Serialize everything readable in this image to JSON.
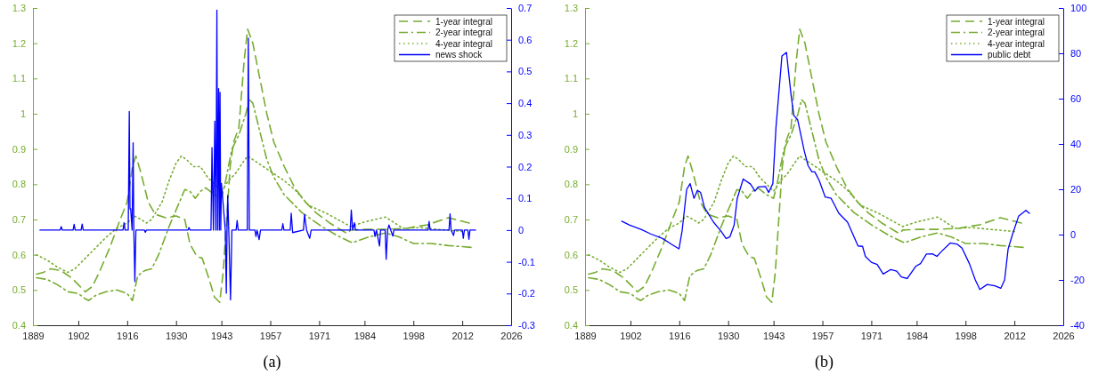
{
  "chart_data": [
    {
      "type": "line",
      "xlabel": "(a)",
      "xlim": [
        1889,
        2026
      ],
      "xticks": [
        1889,
        1902,
        1916,
        1930,
        1943,
        1957,
        1971,
        1984,
        1998,
        2012,
        2026
      ],
      "ylim": [
        0.4,
        1.3
      ],
      "yticks": [
        0.4,
        0.5,
        0.6,
        0.7,
        0.8,
        0.9,
        1,
        1.1,
        1.2,
        1.3
      ],
      "y2lim": [
        -0.3,
        0.7
      ],
      "y2ticks": [
        -0.3,
        -0.2,
        -0.1,
        0,
        0.1,
        0.2,
        0.3,
        0.4,
        0.5,
        0.6,
        0.7
      ],
      "legend": "top right",
      "series": [
        {
          "name": "1-year integral",
          "color": "#77ac30",
          "line_style": "dashed",
          "x": [
            1890,
            1892,
            1894,
            1897,
            1900,
            1902,
            1904,
            1906,
            1908,
            1911,
            1914,
            1916,
            1917.5,
            1918.5,
            1920,
            1922,
            1924,
            1927,
            1930,
            1932.5,
            1934,
            1936,
            1937.5,
            1939.5,
            1941,
            1942.5,
            1943.5,
            1944.5,
            1945.5,
            1946.5,
            1948,
            1949.5,
            1950.5,
            1952,
            1954,
            1956,
            1958,
            1961,
            1964,
            1967,
            1970,
            1974,
            1979,
            1980,
            1984,
            1990,
            1996,
            2002,
            2008,
            2014
          ],
          "values": [
            0.545,
            0.55,
            0.56,
            0.555,
            0.535,
            0.515,
            0.495,
            0.51,
            0.55,
            0.62,
            0.7,
            0.75,
            0.85,
            0.88,
            0.83,
            0.75,
            0.715,
            0.705,
            0.71,
            0.7,
            0.63,
            0.595,
            0.59,
            0.53,
            0.48,
            0.465,
            0.55,
            0.7,
            0.85,
            0.92,
            0.96,
            1.15,
            1.24,
            1.2,
            1.1,
            1,
            0.92,
            0.85,
            0.79,
            0.75,
            0.72,
            0.69,
            0.66,
            0.67,
            0.672,
            0.672,
            0.675,
            0.685,
            0.705,
            0.69
          ]
        },
        {
          "name": "2-year integral",
          "color": "#77ac30",
          "line_style": "dashdot",
          "x": [
            1890,
            1893,
            1896,
            1899,
            1902,
            1904,
            1905,
            1907,
            1910,
            1913,
            1916,
            1917.5,
            1919,
            1921,
            1923,
            1925,
            1928,
            1931,
            1932.5,
            1934,
            1935.5,
            1937,
            1938.5,
            1941,
            1943,
            1944,
            1946,
            1948,
            1950,
            1951,
            1952,
            1954,
            1956,
            1958,
            1961,
            1966,
            1971,
            1976,
            1980.5,
            1985,
            1990,
            1994,
            1998,
            2003,
            2008,
            2014.5
          ],
          "values": [
            0.535,
            0.53,
            0.515,
            0.495,
            0.49,
            0.475,
            0.47,
            0.485,
            0.495,
            0.5,
            0.49,
            0.47,
            0.54,
            0.555,
            0.56,
            0.6,
            0.68,
            0.75,
            0.785,
            0.78,
            0.76,
            0.78,
            0.79,
            0.77,
            0.76,
            0.8,
            0.9,
            0.94,
            1,
            1.04,
            1.03,
            0.95,
            0.87,
            0.82,
            0.77,
            0.72,
            0.685,
            0.655,
            0.634,
            0.65,
            0.662,
            0.65,
            0.632,
            0.632,
            0.626,
            0.621
          ]
        },
        {
          "name": "4-year integral",
          "color": "#77ac30",
          "line_style": "dotted",
          "x": [
            1890,
            1893,
            1896,
            1899,
            1901,
            1904,
            1907,
            1910,
            1913,
            1916,
            1918,
            1920,
            1921.5,
            1923,
            1926,
            1928,
            1930,
            1931.5,
            1933,
            1935,
            1937,
            1939,
            1941,
            1943,
            1945,
            1947,
            1949,
            1950.5,
            1952,
            1955,
            1958,
            1961,
            1964,
            1968,
            1973,
            1980,
            1984,
            1990,
            1995,
            2000,
            2005,
            2012
          ],
          "values": [
            0.6,
            0.585,
            0.565,
            0.55,
            0.56,
            0.59,
            0.62,
            0.65,
            0.675,
            0.69,
            0.71,
            0.7,
            0.69,
            0.7,
            0.75,
            0.81,
            0.86,
            0.88,
            0.87,
            0.85,
            0.85,
            0.82,
            0.8,
            0.78,
            0.81,
            0.83,
            0.86,
            0.88,
            0.87,
            0.85,
            0.83,
            0.81,
            0.785,
            0.74,
            0.718,
            0.68,
            0.693,
            0.707,
            0.675,
            0.677,
            0.672,
            0.666
          ]
        },
        {
          "name": "news shock",
          "color": "#0000ff",
          "line_style": "solid",
          "axis": "y2",
          "x": [
            1891,
            1896.8,
            1897.1,
            1897.4,
            1900.5,
            1900.8,
            1901.1,
            1902.8,
            1903.1,
            1903.4,
            1914.8,
            1915.1,
            1915.4,
            1916.3,
            1916.6,
            1916.8,
            1917,
            1917.4,
            1917.7,
            1917.9,
            1918.2,
            1918.5,
            1920.9,
            1921.2,
            1921.5,
            1933.4,
            1933.7,
            1934,
            1940,
            1940.3,
            1940.7,
            1941.1,
            1941.4,
            1941.7,
            1941.9,
            1942.2,
            1942.4,
            1942.6,
            1942.8,
            1943,
            1944.1,
            1944.4,
            1944.6,
            1944.8,
            1945.1,
            1945.6,
            1946,
            1947.2,
            1947.5,
            1947.8,
            1950.4,
            1950.7,
            1951,
            1952.6,
            1952.9,
            1953.2,
            1953.8,
            1954.2,
            1960.3,
            1960.6,
            1960.9,
            1962.7,
            1963,
            1963.4,
            1966.5,
            1966.8,
            1967.4,
            1968.3,
            1968.7,
            1979.9,
            1980.2,
            1980.6,
            1981.1,
            1981.4,
            1986.7,
            1987,
            1987.4,
            1988.3,
            1988.6,
            1989.9,
            1990.2,
            1990.6,
            1991,
            1991.5,
            1992.1,
            1992.4,
            2002.2,
            2002.5,
            2002.8,
            2008.2,
            2008.5,
            2008.8,
            2009.5,
            2009.8,
            2012,
            2012.3,
            2012.6,
            2013.6,
            2013.9,
            2014.2,
            2015.8
          ],
          "values": [
            0,
            0,
            0.011,
            0,
            0,
            0.018,
            0,
            0,
            0.019,
            0,
            0,
            0.023,
            0,
            0,
            0.374,
            0.067,
            0.067,
            0,
            0.275,
            0,
            -0.162,
            0,
            0,
            -0.007,
            0,
            0,
            0.008,
            0,
            0,
            0.26,
            0,
            0.343,
            0,
            0.693,
            0,
            0.446,
            0,
            0.434,
            0,
            0.147,
            0,
            -0.199,
            0,
            0.109,
            0,
            -0.22,
            0,
            0,
            0.03,
            0,
            0,
            0.605,
            0,
            0,
            -0.02,
            0,
            -0.03,
            0,
            0,
            0.02,
            0,
            0,
            0.053,
            -0.008,
            0,
            0.049,
            0,
            -0.026,
            0,
            0,
            0.063,
            0,
            0.023,
            0,
            0,
            -0.02,
            0,
            -0.05,
            0,
            0,
            -0.092,
            0,
            0.016,
            0,
            -0.019,
            0,
            0,
            0.027,
            0,
            0,
            0.051,
            0,
            -0.017,
            0,
            0,
            -0.026,
            0,
            0,
            -0.029,
            0,
            0
          ]
        }
      ]
    },
    {
      "type": "line",
      "xlabel": "(b)",
      "xlim": [
        1889,
        2026
      ],
      "xticks": [
        1889,
        1902,
        1916,
        1930,
        1943,
        1957,
        1971,
        1984,
        1998,
        2012,
        2026
      ],
      "ylim": [
        0.4,
        1.3
      ],
      "yticks": [
        0.4,
        0.5,
        0.6,
        0.7,
        0.8,
        0.9,
        1,
        1.1,
        1.2,
        1.3
      ],
      "y2lim": [
        -40,
        100
      ],
      "y2ticks": [
        -40,
        -20,
        0,
        20,
        40,
        60,
        80,
        100
      ],
      "legend": "top right",
      "series": [
        {
          "name": "1-year integral",
          "color": "#77ac30",
          "line_style": "dashed",
          "x": [
            1890,
            1892,
            1894,
            1897,
            1900,
            1902,
            1904,
            1906,
            1908,
            1911,
            1914,
            1916,
            1917.5,
            1918.5,
            1920,
            1922,
            1924,
            1927,
            1930,
            1932.5,
            1934,
            1936,
            1937.5,
            1939.5,
            1941,
            1942.5,
            1943.5,
            1944.5,
            1945.5,
            1946.5,
            1948,
            1949.5,
            1950.5,
            1952,
            1954,
            1956,
            1958,
            1961,
            1964,
            1967,
            1970,
            1974,
            1979,
            1980,
            1984,
            1990,
            1996,
            2002,
            2008,
            2014
          ],
          "values": [
            0.545,
            0.55,
            0.56,
            0.555,
            0.535,
            0.515,
            0.495,
            0.51,
            0.55,
            0.62,
            0.7,
            0.75,
            0.85,
            0.88,
            0.83,
            0.75,
            0.715,
            0.705,
            0.71,
            0.7,
            0.63,
            0.595,
            0.59,
            0.53,
            0.48,
            0.465,
            0.55,
            0.7,
            0.85,
            0.92,
            0.96,
            1.15,
            1.24,
            1.2,
            1.1,
            1,
            0.92,
            0.85,
            0.79,
            0.75,
            0.72,
            0.69,
            0.66,
            0.67,
            0.672,
            0.672,
            0.675,
            0.685,
            0.705,
            0.69
          ]
        },
        {
          "name": "2-year integral",
          "color": "#77ac30",
          "line_style": "dashdot",
          "x": [
            1890,
            1893,
            1896,
            1899,
            1902,
            1904,
            1905,
            1907,
            1910,
            1913,
            1916,
            1917.5,
            1919,
            1921,
            1923,
            1925,
            1928,
            1931,
            1932.5,
            1934,
            1935.5,
            1937,
            1938.5,
            1941,
            1943,
            1944,
            1946,
            1948,
            1950,
            1951,
            1952,
            1954,
            1956,
            1958,
            1961,
            1966,
            1971,
            1976,
            1980.5,
            1985,
            1990,
            1994,
            1998,
            2003,
            2008,
            2014.5
          ],
          "values": [
            0.535,
            0.53,
            0.515,
            0.495,
            0.49,
            0.475,
            0.47,
            0.485,
            0.495,
            0.5,
            0.49,
            0.47,
            0.54,
            0.555,
            0.56,
            0.6,
            0.68,
            0.75,
            0.785,
            0.78,
            0.76,
            0.78,
            0.79,
            0.77,
            0.76,
            0.8,
            0.9,
            0.94,
            1,
            1.04,
            1.03,
            0.95,
            0.87,
            0.82,
            0.77,
            0.72,
            0.685,
            0.655,
            0.634,
            0.65,
            0.662,
            0.65,
            0.632,
            0.632,
            0.626,
            0.621
          ]
        },
        {
          "name": "4-year integral",
          "color": "#77ac30",
          "line_style": "dotted",
          "x": [
            1890,
            1893,
            1896,
            1899,
            1901,
            1904,
            1907,
            1910,
            1913,
            1916,
            1918,
            1920,
            1921.5,
            1923,
            1926,
            1928,
            1930,
            1931.5,
            1933,
            1935,
            1937,
            1939,
            1941,
            1943,
            1945,
            1947,
            1949,
            1950.5,
            1952,
            1955,
            1958,
            1961,
            1964,
            1968,
            1973,
            1980,
            1984,
            1990,
            1995,
            2000,
            2005,
            2012
          ],
          "values": [
            0.6,
            0.585,
            0.565,
            0.55,
            0.56,
            0.59,
            0.62,
            0.65,
            0.675,
            0.69,
            0.71,
            0.7,
            0.69,
            0.7,
            0.75,
            0.81,
            0.86,
            0.88,
            0.87,
            0.85,
            0.85,
            0.82,
            0.8,
            0.78,
            0.81,
            0.83,
            0.86,
            0.88,
            0.87,
            0.85,
            0.83,
            0.81,
            0.785,
            0.74,
            0.718,
            0.68,
            0.693,
            0.707,
            0.675,
            0.677,
            0.672,
            0.666
          ]
        },
        {
          "name": "public debt",
          "color": "#0000ff",
          "line_style": "solid",
          "axis": "y2",
          "x": [
            1899.5,
            1901.8,
            1905.2,
            1907.8,
            1911.2,
            1913.8,
            1915.9,
            1916.8,
            1918.1,
            1919.1,
            1920.2,
            1921.2,
            1922.1,
            1923.2,
            1925.8,
            1927.9,
            1929.4,
            1930.5,
            1931.7,
            1932.6,
            1934.3,
            1936.4,
            1937.7,
            1938.6,
            1940.7,
            1941.6,
            1942.8,
            1943.7,
            1945.4,
            1946.7,
            1948,
            1948.8,
            1949.9,
            1951.8,
            1952.9,
            1954,
            1954.8,
            1956.1,
            1957.8,
            1959.5,
            1961.7,
            1964.2,
            1967.2,
            1968.5,
            1969.3,
            1971,
            1972.7,
            1974.4,
            1976.6,
            1978.3,
            1979.6,
            1981.3,
            1983.8,
            1985.1,
            1986.8,
            1988.5,
            1989.8,
            1991,
            1993.6,
            1995.7,
            1997,
            1999.1,
            2000.8,
            2002.1,
            2004.2,
            2006.4,
            2008.1,
            2009.2,
            2010.2,
            2011.5,
            2013.2,
            2015.3,
            2016.3
          ],
          "values": [
            5.9,
            4.2,
            2.2,
            0.3,
            -1.7,
            -4.3,
            -6.3,
            1.6,
            19.9,
            22.5,
            16,
            19.5,
            18.6,
            12,
            5.5,
            1.6,
            -1.7,
            -1,
            4.2,
            16,
            24.5,
            22.3,
            19.2,
            21,
            21.2,
            18.6,
            22.5,
            47.4,
            78.8,
            80.4,
            61.8,
            52.6,
            50.7,
            36.9,
            30.4,
            27.7,
            27.7,
            23.8,
            16.6,
            16,
            9.4,
            5.5,
            -5,
            -5.2,
            -9.6,
            -12.2,
            -13.2,
            -17.4,
            -15.4,
            -16.1,
            -18.7,
            -19.4,
            -13.9,
            -12.8,
            -8.6,
            -8.5,
            -9.6,
            -7.6,
            -3.7,
            -4.3,
            -6,
            -12.8,
            -20,
            -24.2,
            -22,
            -22.6,
            -23.7,
            -20,
            -6.3,
            0.3,
            8.1,
            10.7,
            9.4
          ]
        }
      ]
    }
  ]
}
